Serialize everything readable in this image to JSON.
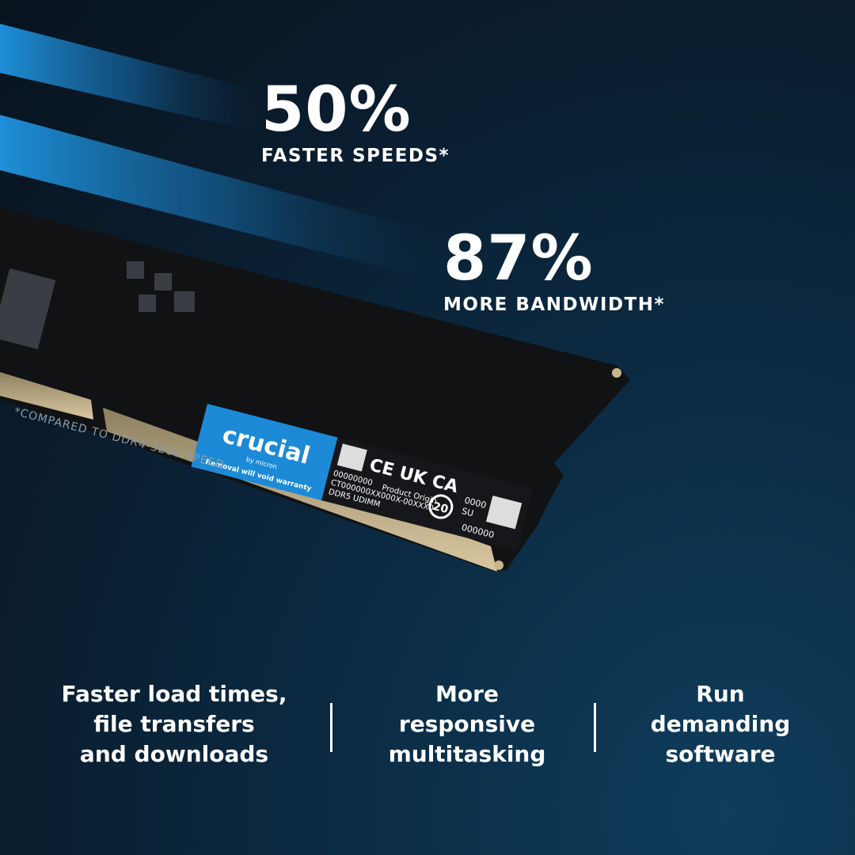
{
  "stats": [
    {
      "value": "50%",
      "label": "FASTER SPEEDS*"
    },
    {
      "value": "87%",
      "label": "MORE BANDWIDTH*"
    }
  ],
  "footnote": "*COMPARED TO DDR4-3200 SPEED",
  "label": {
    "brand": "crucial",
    "by": "by micron",
    "warranty": "Removal will void warranty",
    "serial": "00000000",
    "part": "CT000000XX000X-00XXX0",
    "type": "DDR5 UDIMM",
    "origin": "Product Origin",
    "marks": "CE UK CA",
    "years": "20",
    "code1": "0000",
    "code2": "SU",
    "code3": "000000"
  },
  "features": [
    "Faster load times,\nfile transfers\nand downloads",
    "More\nresponsive\nmultitasking",
    "Run\ndemanding\nsoftware"
  ],
  "colors": {
    "accent": "#1e8fd8",
    "label_blue": "#1c8ad6"
  }
}
